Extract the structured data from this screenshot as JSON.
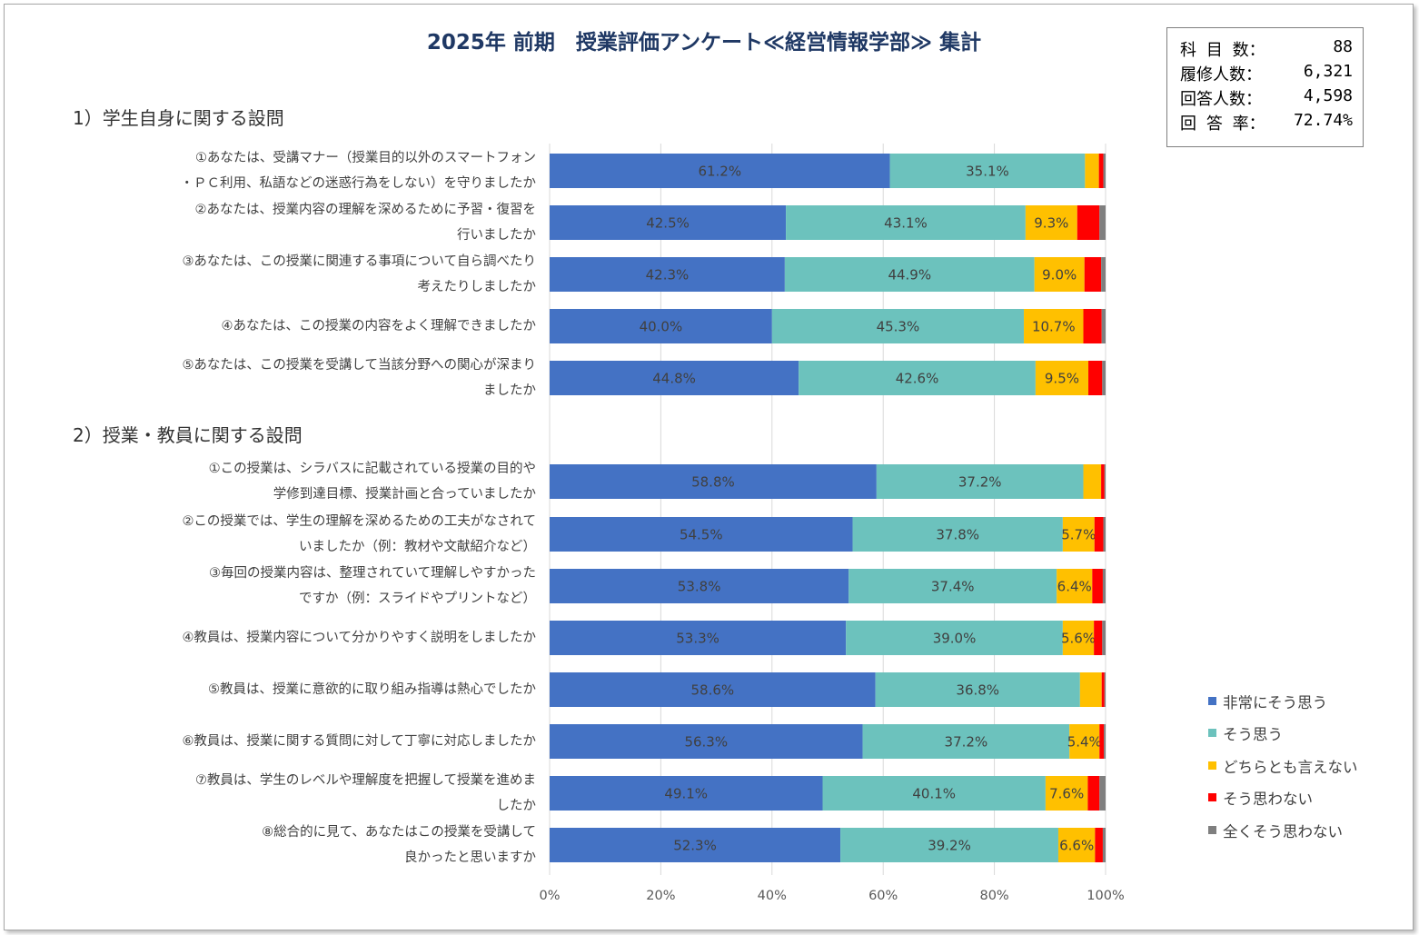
{
  "header": {
    "title": "2025年 前期　授業評価アンケート≪経営情報学部≫ 集計"
  },
  "stats": [
    {
      "label": "科 目 数：",
      "value": "88"
    },
    {
      "label": "履修人数：",
      "value": "6,321"
    },
    {
      "label": "回答人数：",
      "value": "4,598"
    },
    {
      "label": "回 答 率：",
      "value": "72.74%"
    }
  ],
  "sections": {
    "s1": "1）学生自身に関する設問",
    "s2": "2）授業・教員に関する設問"
  },
  "colors": {
    "very_agree": "#4472c4",
    "agree": "#6cc2bd",
    "neutral": "#ffc000",
    "disagree": "#ff0000",
    "strongly_disagree": "#7f7f7f",
    "grid": "#d9d9d9",
    "title": "#1f3864"
  },
  "chart_data": {
    "type": "bar",
    "orientation": "horizontal",
    "stacked": true,
    "xlim": [
      0,
      100
    ],
    "x_ticks": [
      "0%",
      "20%",
      "40%",
      "60%",
      "80%",
      "100%"
    ],
    "grid": true,
    "legend_position": "right-bottom",
    "categories": [
      "①あなたは、受講マナー（授業目的以外のスマートフォン\n・ＰＣ利用、私語などの迷惑行為をしない）を守りましたか",
      "②あなたは、授業内容の理解を深めるために予習・復習を\n行いましたか",
      "③あなたは、この授業に関連する事項について自ら調べたり\n考えたりしましたか",
      "④あなたは、この授業の内容をよく理解できましたか",
      "⑤あなたは、この授業を受講して当該分野への関心が深まり\nましたか",
      "①この授業は、シラバスに記載されている授業の目的や\n学修到達目標、授業計画と合っていましたか",
      "②この授業では、学生の理解を深めるための工夫がなされて\nいましたか（例：教材や文献紹介など）",
      "③毎回の授業内容は、整理されていて理解しやすかった\nですか（例：スライドやプリントなど）",
      "④教員は、授業内容について分かりやすく説明をしましたか",
      "⑤教員は、授業に意欲的に取り組み指導は熱心でしたか",
      "⑥教員は、授業に関する質問に対して丁寧に対応しましたか",
      "⑦教員は、学生のレベルや理解度を把握して授業を進めま\nしたか",
      "⑧総合的に見て、あなたはこの授業を受講して\n良かったと思いますか"
    ],
    "series": [
      {
        "name": "非常にそう思う",
        "values": [
          61.2,
          42.5,
          42.3,
          40.0,
          44.8,
          58.8,
          54.5,
          53.8,
          53.3,
          58.6,
          56.3,
          49.1,
          52.3
        ],
        "labels": [
          "61.2%",
          "42.5%",
          "42.3%",
          "40.0%",
          "44.8%",
          "58.8%",
          "54.5%",
          "53.8%",
          "53.3%",
          "58.6%",
          "56.3%",
          "49.1%",
          "52.3%"
        ]
      },
      {
        "name": "そう思う",
        "values": [
          35.1,
          43.1,
          44.9,
          45.3,
          42.6,
          37.2,
          37.8,
          37.4,
          39.0,
          36.8,
          37.2,
          40.1,
          39.2
        ],
        "labels": [
          "35.1%",
          "43.1%",
          "44.9%",
          "45.3%",
          "42.6%",
          "37.2%",
          "37.8%",
          "37.4%",
          "39.0%",
          "36.8%",
          "37.2%",
          "40.1%",
          "39.2%"
        ]
      },
      {
        "name": "どちらとも言えない",
        "values": [
          2.5,
          9.3,
          9.0,
          10.7,
          9.5,
          3.2,
          5.7,
          6.4,
          5.6,
          3.9,
          5.4,
          7.6,
          6.6
        ],
        "labels": [
          "",
          "9.3%",
          "9.0%",
          "10.7%",
          "9.5%",
          "",
          "5.7%",
          "6.4%",
          "5.6%",
          "",
          "5.4%",
          "7.6%",
          "6.6%"
        ]
      },
      {
        "name": "そう思わない",
        "values": [
          0.8,
          4.0,
          3.0,
          3.3,
          2.5,
          0.6,
          1.6,
          1.9,
          1.5,
          0.5,
          0.8,
          2.1,
          1.4
        ],
        "labels": [
          "",
          "",
          "",
          "",
          "",
          "",
          "",
          "",
          "",
          "",
          "",
          "",
          ""
        ]
      },
      {
        "name": "全くそう思わない",
        "values": [
          0.4,
          1.1,
          0.8,
          0.7,
          0.6,
          0.2,
          0.4,
          0.5,
          0.6,
          0.2,
          0.3,
          1.1,
          0.5
        ],
        "labels": [
          "",
          "",
          "",
          "",
          "",
          "",
          "",
          "",
          "",
          "",
          "",
          "",
          ""
        ]
      }
    ]
  }
}
